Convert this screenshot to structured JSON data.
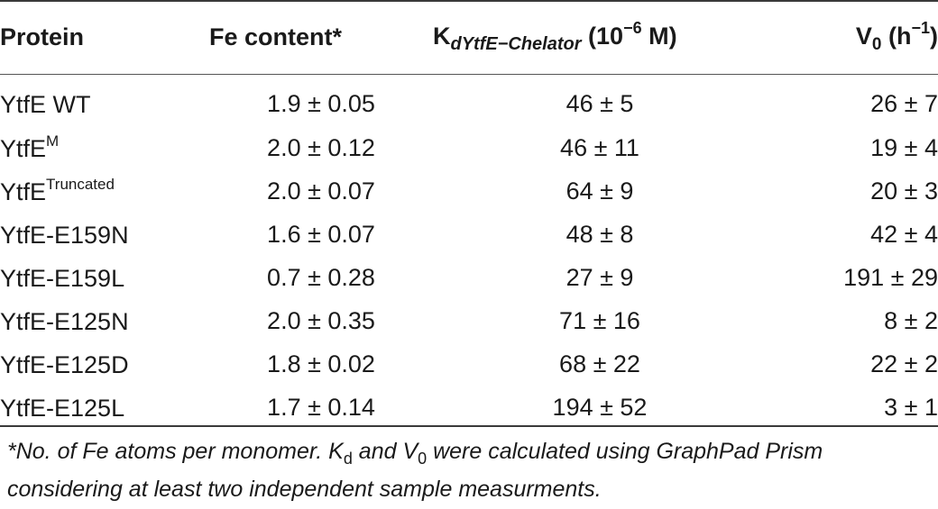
{
  "header": {
    "protein": "Protein",
    "fe_content": "Fe content*",
    "kd_main": "K",
    "kd_sub": "dYtfE−Chelator",
    "kd_unit_pre": " (10",
    "kd_unit_exp": "−6",
    "kd_unit_post": " M)",
    "v0_main": "V",
    "v0_sub": "0",
    "v0_unit_pre": " (h",
    "v0_unit_exp": "−1",
    "v0_unit_post": ")"
  },
  "rows": [
    {
      "protein": "YtfE WT",
      "protein_sup": "",
      "fe": "1.9 ± 0.05",
      "kd": "46 ± 5",
      "v0": "26 ± 7"
    },
    {
      "protein": "YtfE",
      "protein_sup": "M",
      "fe": "2.0 ± 0.12",
      "kd": "46 ± 11",
      "v0": "19 ± 4"
    },
    {
      "protein": "YtfE",
      "protein_sup": "Truncated",
      "fe": "2.0 ± 0.07",
      "kd": "64 ± 9",
      "v0": "20 ± 3"
    },
    {
      "protein": "YtfE-E159N",
      "protein_sup": "",
      "fe": "1.6 ± 0.07",
      "kd": "48 ± 8",
      "v0": "42 ± 4"
    },
    {
      "protein": "YtfE-E159L",
      "protein_sup": "",
      "fe": "0.7 ± 0.28",
      "kd": "27 ± 9",
      "v0": "191 ± 29"
    },
    {
      "protein": "YtfE-E125N",
      "protein_sup": "",
      "fe": "2.0 ± 0.35",
      "kd": "71 ± 16",
      "v0": "8 ± 2"
    },
    {
      "protein": "YtfE-E125D",
      "protein_sup": "",
      "fe": "1.8 ± 0.02",
      "kd": "68 ± 22",
      "v0": "22 ± 2"
    },
    {
      "protein": "YtfE-E125L",
      "protein_sup": "",
      "fe": "1.7 ± 0.14",
      "kd": "194 ± 52",
      "v0": "3 ± 1"
    }
  ],
  "footnote": {
    "part1": "*No. of Fe atoms per monomer. K",
    "kd_sub": "d",
    "part2": " and V",
    "v0_sub": "0",
    "part3": " were calculated using GraphPad Prism considering at least two independent sample measurments."
  }
}
